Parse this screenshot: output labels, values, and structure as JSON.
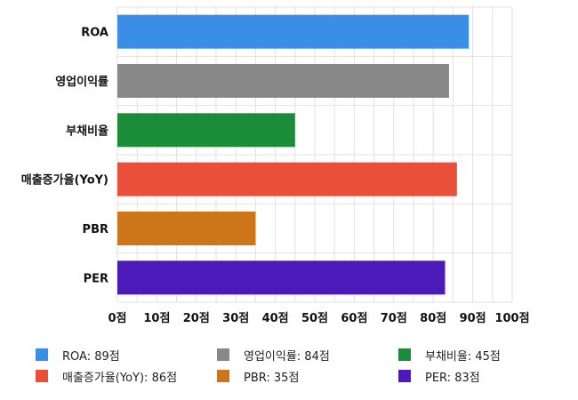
{
  "chart_data": {
    "type": "bar",
    "orientation": "horizontal",
    "categories": [
      "ROA",
      "영업이익률",
      "부채비율",
      "매출증가율(YoY)",
      "PBR",
      "PER"
    ],
    "values": [
      89,
      84,
      45,
      86,
      35,
      83
    ],
    "colors": [
      "#3b8ee8",
      "#888888",
      "#1a8c3a",
      "#ea4f3a",
      "#cc7519",
      "#4b1ab9"
    ],
    "xlim": [
      0,
      100
    ],
    "xticks": [
      0,
      10,
      20,
      30,
      40,
      50,
      60,
      70,
      80,
      90,
      100
    ],
    "xtick_labels": [
      "0점",
      "10점",
      "20점",
      "30점",
      "40점",
      "50점",
      "60점",
      "70점",
      "80점",
      "90점",
      "100점"
    ],
    "grid": true,
    "legend_position": "bottom",
    "legend": [
      "ROA: 89점",
      "영업이익률: 84점",
      "부채비율: 45점",
      "매출증가율(YoY): 86점",
      "PBR: 35점",
      "PER: 83점"
    ]
  }
}
